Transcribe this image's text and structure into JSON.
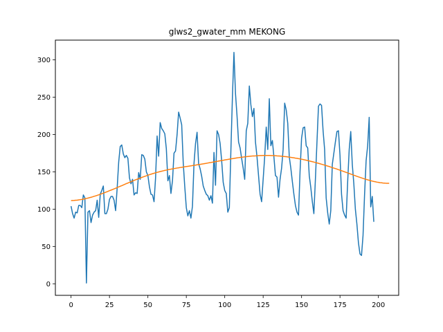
{
  "chart_data": {
    "type": "line",
    "title": "glws2_gwater_mm MEKONG",
    "xlabel": "",
    "ylabel": "",
    "xlim": [
      -10.2,
      213.2
    ],
    "ylim": [
      -15.5,
      326.5
    ],
    "x_ticks": [
      0,
      25,
      50,
      75,
      100,
      125,
      150,
      175,
      200
    ],
    "y_ticks": [
      0,
      50,
      100,
      150,
      200,
      250,
      300
    ],
    "grid": false,
    "legend": "none",
    "series": [
      {
        "color": "#1f77b4",
        "values": [
          104,
          94,
          88,
          96,
          95,
          105,
          105,
          102,
          119,
          115,
          1,
          96,
          98,
          82,
          92,
          96,
          98,
          112,
          89,
          120,
          125,
          131,
          94,
          94,
          100,
          113,
          117,
          117,
          112,
          98,
          128,
          163,
          184,
          186,
          174,
          169,
          172,
          168,
          142,
          134,
          140,
          119,
          122,
          121,
          149,
          140,
          173,
          172,
          167,
          150,
          145,
          130,
          120,
          119,
          110,
          142,
          198,
          171,
          216,
          208,
          205,
          201,
          181,
          138,
          145,
          121,
          138,
          175,
          178,
          200,
          230,
          222,
          213,
          162,
          130,
          102,
          91,
          98,
          88,
          104,
          161,
          188,
          203,
          161,
          154,
          144,
          131,
          125,
          120,
          118,
          112,
          118,
          108,
          176,
          132,
          205,
          200,
          188,
          165,
          136,
          125,
          121,
          96,
          102,
          178,
          250,
          310,
          255,
          225,
          190,
          182,
          168,
          155,
          140,
          205,
          215,
          265,
          240,
          224,
          235,
          190,
          170,
          145,
          120,
          110,
          140,
          170,
          210,
          180,
          248,
          185,
          192,
          170,
          145,
          143,
          116,
          140,
          155,
          180,
          242,
          233,
          215,
          170,
          155,
          137,
          120,
          105,
          96,
          92,
          150,
          195,
          209,
          210,
          185,
          182,
          145,
          129,
          110,
          94,
          140,
          189,
          238,
          241,
          239,
          205,
          180,
          115,
          95,
          80,
          98,
          160,
          175,
          190,
          204,
          205,
          172,
          120,
          98,
          92,
          88,
          137,
          180,
          204,
          160,
          134,
          100,
          80,
          55,
          40,
          38,
          65,
          120,
          165,
          185,
          223,
          103,
          117,
          83
        ]
      },
      {
        "color": "#ff7f0e",
        "values": [
          111.5,
          111.6,
          111.7,
          111.9,
          112.1,
          112.4,
          112.7,
          113.0,
          113.4,
          113.8,
          114.3,
          114.8,
          115.4,
          115.9,
          116.5,
          117.2,
          117.8,
          118.5,
          119.2,
          119.9,
          120.7,
          121.4,
          122.2,
          123.0,
          123.8,
          124.7,
          125.5,
          126.3,
          127.2,
          128.0,
          128.9,
          129.8,
          130.7,
          131.5,
          132.4,
          133.3,
          134.2,
          135.0,
          135.9,
          136.8,
          137.6,
          138.5,
          139.3,
          140.1,
          140.9,
          141.7,
          142.5,
          143.3,
          144.0,
          144.7,
          145.5,
          146.2,
          146.8,
          147.5,
          148.1,
          148.7,
          149.3,
          149.8,
          150.4,
          150.9,
          151.4,
          151.9,
          152.3,
          152.8,
          153.2,
          153.6,
          154.0,
          154.4,
          154.7,
          155.1,
          155.4,
          155.8,
          156.1,
          156.4,
          156.8,
          157.1,
          157.4,
          157.7,
          158.0,
          158.4,
          158.7,
          159.0,
          159.4,
          159.7,
          160.0,
          160.4,
          160.7,
          161.1,
          161.4,
          161.8,
          162.2,
          162.5,
          162.9,
          163.3,
          163.7,
          164.0,
          164.4,
          164.8,
          165.2,
          165.5,
          165.9,
          166.3,
          166.6,
          167.0,
          167.4,
          167.7,
          168.0,
          168.4,
          168.7,
          169.0,
          169.3,
          169.6,
          169.8,
          170.1,
          170.3,
          170.6,
          170.8,
          171.0,
          171.2,
          171.3,
          171.4,
          171.6,
          171.7,
          171.8,
          171.8,
          171.9,
          171.9,
          171.9,
          171.9,
          171.9,
          171.8,
          171.7,
          171.7,
          171.6,
          171.4,
          171.3,
          171.1,
          170.9,
          170.7,
          170.5,
          170.3,
          170.0,
          169.7,
          169.4,
          169.1,
          168.8,
          168.4,
          168.1,
          167.7,
          167.3,
          166.9,
          166.5,
          166.0,
          165.6,
          165.1,
          164.6,
          164.1,
          163.6,
          163.1,
          162.5,
          162.0,
          161.4,
          160.8,
          160.2,
          159.6,
          159.0,
          158.4,
          157.7,
          157.1,
          156.4,
          155.7,
          155.0,
          154.4,
          153.7,
          152.9,
          152.2,
          151.5,
          150.8,
          150.0,
          149.3,
          148.5,
          147.8,
          147.0,
          146.3,
          145.5,
          144.8,
          144.0,
          143.3,
          142.6,
          141.9,
          141.2,
          140.5,
          139.9,
          139.3,
          138.7,
          138.1,
          137.6,
          137.1,
          136.7,
          136.2,
          135.9,
          135.5,
          135.3,
          135.0,
          134.9,
          134.7,
          134.7,
          134.7
        ]
      }
    ]
  }
}
